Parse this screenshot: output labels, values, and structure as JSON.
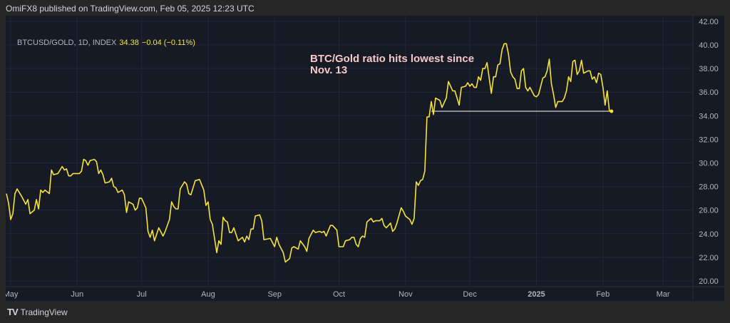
{
  "header": {
    "published": "OmiFX8 published on TradingView.com, Feb 05, 2025 12:23 UTC"
  },
  "legend": {
    "symbol": "BTCUSD/GOLD, 1D, INDEX",
    "last": "34.38",
    "change": "−0.04 (−0.11%)"
  },
  "annotation": "BTC/Gold ratio hits lowest since Nov. 13",
  "footer": {
    "brand": "TradingView",
    "logo": "TV"
  },
  "colors": {
    "line": "#f5e33c",
    "background": "#161a25",
    "grid": "#232734",
    "axis_text": "#b2b5be",
    "annotation": "#f7c8c8",
    "hline": "#ffffff"
  },
  "chart_data": {
    "type": "line",
    "title": "",
    "ylim": [
      20,
      42
    ],
    "y_ticks": [
      "20.00",
      "22.00",
      "24.00",
      "26.00",
      "28.00",
      "30.00",
      "32.00",
      "34.00",
      "36.00",
      "38.00",
      "40.00",
      "42.00"
    ],
    "x_ticks": [
      {
        "label": "May",
        "date": "2024-05-01"
      },
      {
        "label": "Jun",
        "date": "2024-06-01"
      },
      {
        "label": "Jul",
        "date": "2024-07-01"
      },
      {
        "label": "Aug",
        "date": "2024-08-01"
      },
      {
        "label": "Sep",
        "date": "2024-09-01"
      },
      {
        "label": "Oct",
        "date": "2024-10-01"
      },
      {
        "label": "Nov",
        "date": "2024-11-01"
      },
      {
        "label": "Dec",
        "date": "2024-12-01"
      },
      {
        "label": "2025",
        "date": "2025-01-01",
        "bold": true
      },
      {
        "label": "Feb",
        "date": "2025-02-01"
      },
      {
        "label": "Mar",
        "date": "2025-03-01"
      }
    ],
    "grid": true,
    "horizontal_line": {
      "value": 34.38,
      "from": "2024-11-13",
      "to": "2025-02-05"
    },
    "series": [
      {
        "points": [
          [
            "2024-04-29",
            27.4
          ],
          [
            "2024-04-30",
            26.6
          ],
          [
            "2024-05-01",
            25.2
          ],
          [
            "2024-05-02",
            25.7
          ],
          [
            "2024-05-03",
            27.4
          ],
          [
            "2024-05-04",
            27.8
          ],
          [
            "2024-05-06",
            27.2
          ],
          [
            "2024-05-08",
            26.5
          ],
          [
            "2024-05-09",
            26.9
          ],
          [
            "2024-05-10",
            25.7
          ],
          [
            "2024-05-12",
            26.0
          ],
          [
            "2024-05-13",
            26.9
          ],
          [
            "2024-05-14",
            26.1
          ],
          [
            "2024-05-15",
            27.7
          ],
          [
            "2024-05-16",
            27.5
          ],
          [
            "2024-05-17",
            27.7
          ],
          [
            "2024-05-19",
            27.4
          ],
          [
            "2024-05-20",
            29.4
          ],
          [
            "2024-05-21",
            29.0
          ],
          [
            "2024-05-23",
            29.1
          ],
          [
            "2024-05-25",
            29.7
          ],
          [
            "2024-05-26",
            29.4
          ],
          [
            "2024-05-27",
            29.5
          ],
          [
            "2024-05-28",
            28.9
          ],
          [
            "2024-05-29",
            28.9
          ],
          [
            "2024-05-30",
            29.1
          ],
          [
            "2024-05-31",
            29.1
          ],
          [
            "2024-06-02",
            29.1
          ],
          [
            "2024-06-03",
            29.3
          ],
          [
            "2024-06-04",
            30.3
          ],
          [
            "2024-06-05",
            30.2
          ],
          [
            "2024-06-06",
            29.8
          ],
          [
            "2024-06-07",
            30.2
          ],
          [
            "2024-06-09",
            30.3
          ],
          [
            "2024-06-10",
            30.1
          ],
          [
            "2024-06-11",
            29.1
          ],
          [
            "2024-06-12",
            29.4
          ],
          [
            "2024-06-13",
            29.0
          ],
          [
            "2024-06-14",
            28.3
          ],
          [
            "2024-06-16",
            28.4
          ],
          [
            "2024-06-17",
            28.7
          ],
          [
            "2024-06-18",
            28.0
          ],
          [
            "2024-06-19",
            27.9
          ],
          [
            "2024-06-20",
            27.5
          ],
          [
            "2024-06-22",
            27.7
          ],
          [
            "2024-06-23",
            27.3
          ],
          [
            "2024-06-24",
            25.8
          ],
          [
            "2024-06-25",
            26.7
          ],
          [
            "2024-06-27",
            26.5
          ],
          [
            "2024-06-28",
            26.0
          ],
          [
            "2024-06-29",
            26.2
          ],
          [
            "2024-06-30",
            27.0
          ],
          [
            "2024-07-01",
            27.0
          ],
          [
            "2024-07-03",
            26.2
          ],
          [
            "2024-07-04",
            24.2
          ],
          [
            "2024-07-05",
            23.7
          ],
          [
            "2024-07-06",
            24.3
          ],
          [
            "2024-07-07",
            23.4
          ],
          [
            "2024-07-09",
            24.5
          ],
          [
            "2024-07-11",
            23.8
          ],
          [
            "2024-07-12",
            24.2
          ],
          [
            "2024-07-14",
            25.2
          ],
          [
            "2024-07-15",
            26.7
          ],
          [
            "2024-07-16",
            26.3
          ],
          [
            "2024-07-17",
            26.1
          ],
          [
            "2024-07-18",
            26.1
          ],
          [
            "2024-07-19",
            27.8
          ],
          [
            "2024-07-21",
            28.4
          ],
          [
            "2024-07-22",
            28.2
          ],
          [
            "2024-07-23",
            27.4
          ],
          [
            "2024-07-24",
            27.3
          ],
          [
            "2024-07-26",
            28.5
          ],
          [
            "2024-07-28",
            28.6
          ],
          [
            "2024-07-30",
            27.7
          ],
          [
            "2024-07-31",
            26.4
          ],
          [
            "2024-08-01",
            26.7
          ],
          [
            "2024-08-02",
            25.2
          ],
          [
            "2024-08-03",
            24.8
          ],
          [
            "2024-08-05",
            22.4
          ],
          [
            "2024-08-06",
            23.4
          ],
          [
            "2024-08-07",
            23.1
          ],
          [
            "2024-08-08",
            25.4
          ],
          [
            "2024-08-09",
            25.1
          ],
          [
            "2024-08-10",
            25.0
          ],
          [
            "2024-08-11",
            24.1
          ],
          [
            "2024-08-12",
            24.1
          ],
          [
            "2024-08-13",
            24.5
          ],
          [
            "2024-08-15",
            23.4
          ],
          [
            "2024-08-17",
            23.7
          ],
          [
            "2024-08-18",
            23.3
          ],
          [
            "2024-08-19",
            23.8
          ],
          [
            "2024-08-20",
            23.5
          ],
          [
            "2024-08-21",
            24.4
          ],
          [
            "2024-08-22",
            24.4
          ],
          [
            "2024-08-23",
            25.5
          ],
          [
            "2024-08-25",
            25.6
          ],
          [
            "2024-08-26",
            25.1
          ],
          [
            "2024-08-27",
            23.5
          ],
          [
            "2024-08-30",
            23.6
          ],
          [
            "2024-09-01",
            22.9
          ],
          [
            "2024-09-02",
            23.7
          ],
          [
            "2024-09-03",
            23.1
          ],
          [
            "2024-09-05",
            22.4
          ],
          [
            "2024-09-06",
            21.6
          ],
          [
            "2024-09-08",
            21.9
          ],
          [
            "2024-09-09",
            22.8
          ],
          [
            "2024-09-10",
            22.9
          ],
          [
            "2024-09-12",
            22.7
          ],
          [
            "2024-09-13",
            23.4
          ],
          [
            "2024-09-15",
            22.9
          ],
          [
            "2024-09-16",
            22.5
          ],
          [
            "2024-09-17",
            23.6
          ],
          [
            "2024-09-19",
            24.3
          ],
          [
            "2024-09-20",
            24.1
          ],
          [
            "2024-09-22",
            24.2
          ],
          [
            "2024-09-23",
            24.1
          ],
          [
            "2024-09-24",
            24.2
          ],
          [
            "2024-09-25",
            23.8
          ],
          [
            "2024-09-27",
            24.7
          ],
          [
            "2024-09-28",
            24.7
          ],
          [
            "2024-09-30",
            24.3
          ],
          [
            "2024-10-01",
            22.9
          ],
          [
            "2024-10-03",
            22.9
          ],
          [
            "2024-10-04",
            23.4
          ],
          [
            "2024-10-06",
            23.5
          ],
          [
            "2024-10-07",
            23.7
          ],
          [
            "2024-10-08",
            23.7
          ],
          [
            "2024-10-09",
            23.1
          ],
          [
            "2024-10-10",
            22.9
          ],
          [
            "2024-10-11",
            23.6
          ],
          [
            "2024-10-12",
            23.8
          ],
          [
            "2024-10-13",
            23.7
          ],
          [
            "2024-10-14",
            25.0
          ],
          [
            "2024-10-16",
            25.3
          ],
          [
            "2024-10-17",
            25.0
          ],
          [
            "2024-10-18",
            25.1
          ],
          [
            "2024-10-20",
            25.1
          ],
          [
            "2024-10-21",
            25.3
          ],
          [
            "2024-10-22",
            24.7
          ],
          [
            "2024-10-23",
            24.5
          ],
          [
            "2024-10-25",
            24.9
          ],
          [
            "2024-10-26",
            24.2
          ],
          [
            "2024-10-27",
            24.4
          ],
          [
            "2024-10-28",
            24.9
          ],
          [
            "2024-10-30",
            26.2
          ],
          [
            "2024-10-31",
            25.9
          ],
          [
            "2024-11-01",
            25.5
          ],
          [
            "2024-11-03",
            25.2
          ],
          [
            "2024-11-04",
            24.8
          ],
          [
            "2024-11-05",
            25.3
          ],
          [
            "2024-11-06",
            28.4
          ],
          [
            "2024-11-07",
            28.1
          ],
          [
            "2024-11-08",
            28.5
          ],
          [
            "2024-11-09",
            28.6
          ],
          [
            "2024-11-10",
            29.3
          ],
          [
            "2024-11-11",
            33.9
          ],
          [
            "2024-11-12",
            33.9
          ],
          [
            "2024-11-13",
            35.2
          ],
          [
            "2024-11-14",
            34.1
          ],
          [
            "2024-11-15",
            35.5
          ],
          [
            "2024-11-17",
            35.3
          ],
          [
            "2024-11-18",
            34.7
          ],
          [
            "2024-11-20",
            35.5
          ],
          [
            "2024-11-21",
            36.9
          ],
          [
            "2024-11-23",
            36.1
          ],
          [
            "2024-11-24",
            36.1
          ],
          [
            "2024-11-26",
            34.9
          ],
          [
            "2024-11-27",
            36.4
          ],
          [
            "2024-11-29",
            36.5
          ],
          [
            "2024-11-30",
            36.8
          ],
          [
            "2024-12-01",
            36.5
          ],
          [
            "2024-12-02",
            36.7
          ],
          [
            "2024-12-03",
            36.4
          ],
          [
            "2024-12-04",
            36.4
          ],
          [
            "2024-12-05",
            37.3
          ],
          [
            "2024-12-06",
            37.0
          ],
          [
            "2024-12-07",
            38.0
          ],
          [
            "2024-12-08",
            38.0
          ],
          [
            "2024-12-09",
            38.5
          ],
          [
            "2024-12-11",
            35.9
          ],
          [
            "2024-12-12",
            37.3
          ],
          [
            "2024-12-13",
            37.3
          ],
          [
            "2024-12-14",
            38.3
          ],
          [
            "2024-12-15",
            38.4
          ],
          [
            "2024-12-16",
            39.6
          ],
          [
            "2024-12-17",
            40.1
          ],
          [
            "2024-12-18",
            40.1
          ],
          [
            "2024-12-19",
            39.2
          ],
          [
            "2024-12-20",
            37.7
          ],
          [
            "2024-12-21",
            37.3
          ],
          [
            "2024-12-22",
            37.1
          ],
          [
            "2024-12-23",
            36.3
          ],
          [
            "2024-12-24",
            36.3
          ],
          [
            "2024-12-25",
            37.8
          ],
          [
            "2024-12-26",
            38.0
          ],
          [
            "2024-12-27",
            36.4
          ],
          [
            "2024-12-28",
            36.1
          ],
          [
            "2024-12-29",
            36.4
          ],
          [
            "2024-12-31",
            35.7
          ],
          [
            "2025-01-01",
            35.6
          ],
          [
            "2025-01-02",
            35.8
          ],
          [
            "2025-01-03",
            36.5
          ],
          [
            "2025-01-04",
            37.2
          ],
          [
            "2025-01-05",
            37.3
          ],
          [
            "2025-01-06",
            37.8
          ],
          [
            "2025-01-07",
            38.8
          ],
          [
            "2025-01-08",
            36.7
          ],
          [
            "2025-01-09",
            35.8
          ],
          [
            "2025-01-10",
            34.7
          ],
          [
            "2025-01-11",
            35.2
          ],
          [
            "2025-01-13",
            35.2
          ],
          [
            "2025-01-14",
            35.5
          ],
          [
            "2025-01-15",
            36.1
          ],
          [
            "2025-01-16",
            37.3
          ],
          [
            "2025-01-17",
            36.9
          ],
          [
            "2025-01-18",
            38.6
          ],
          [
            "2025-01-19",
            38.7
          ],
          [
            "2025-01-20",
            37.5
          ],
          [
            "2025-01-21",
            37.8
          ],
          [
            "2025-01-22",
            38.7
          ],
          [
            "2025-01-23",
            37.6
          ],
          [
            "2025-01-25",
            37.8
          ],
          [
            "2025-01-26",
            37.8
          ],
          [
            "2025-01-27",
            37.1
          ],
          [
            "2025-01-28",
            37.3
          ],
          [
            "2025-01-29",
            36.8
          ],
          [
            "2025-01-30",
            37.6
          ],
          [
            "2025-01-31",
            37.5
          ],
          [
            "2025-02-01",
            36.4
          ],
          [
            "2025-02-02",
            34.9
          ],
          [
            "2025-02-03",
            36.1
          ],
          [
            "2025-02-04",
            34.4
          ],
          [
            "2025-02-05",
            34.38
          ]
        ]
      }
    ]
  }
}
